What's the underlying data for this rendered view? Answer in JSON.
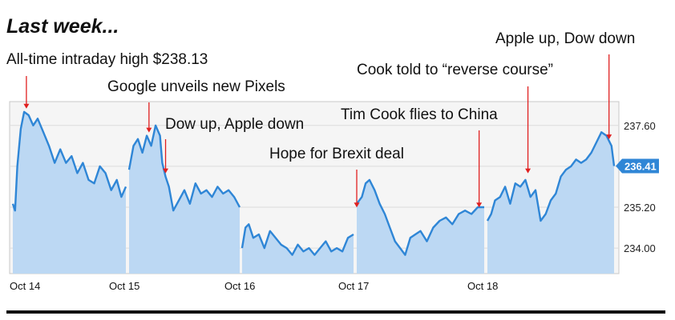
{
  "title": "Last week...",
  "chart_data": {
    "type": "area",
    "ylim": [
      233.25,
      238.3
    ],
    "yticks": [
      237.6,
      236.4,
      235.2,
      234.0
    ],
    "current_value": 236.41,
    "x_categories": [
      "Oct 14",
      "Oct 15",
      "Oct 16",
      "Oct 17",
      "Oct 18"
    ],
    "grid": true,
    "colors": {
      "line": "#2f86d6",
      "fill": "#bcd8f3",
      "plot_bg": "#f5f5f5",
      "annotation_arrow": "#e02020",
      "badge": "#2f86d6"
    },
    "series": [
      {
        "day": "Oct 14",
        "x": [
          0,
          0.02,
          0.04,
          0.07,
          0.1,
          0.14,
          0.18,
          0.22,
          0.27,
          0.32,
          0.37,
          0.42,
          0.47,
          0.52,
          0.57,
          0.62,
          0.67,
          0.72,
          0.77,
          0.82,
          0.87,
          0.92,
          0.96,
          1
        ],
        "y": [
          235.3,
          235.1,
          236.4,
          237.5,
          238.0,
          237.9,
          237.6,
          237.8,
          237.4,
          237.0,
          236.5,
          236.9,
          236.5,
          236.7,
          236.2,
          236.5,
          236.0,
          235.9,
          236.4,
          236.2,
          235.7,
          236.0,
          235.5,
          235.8
        ]
      },
      {
        "day": "Oct 15",
        "x": [
          0,
          0.04,
          0.08,
          0.12,
          0.16,
          0.2,
          0.24,
          0.28,
          0.3,
          0.33,
          0.36,
          0.4,
          0.45,
          0.5,
          0.55,
          0.6,
          0.65,
          0.7,
          0.75,
          0.8,
          0.85,
          0.9,
          0.95,
          1
        ],
        "y": [
          236.3,
          237.0,
          237.2,
          236.8,
          237.3,
          237.0,
          237.6,
          237.3,
          236.5,
          236.1,
          235.8,
          235.1,
          235.4,
          235.7,
          235.3,
          235.9,
          235.6,
          235.7,
          235.5,
          235.8,
          235.6,
          235.7,
          235.5,
          235.2
        ]
      },
      {
        "day": "Oct 16",
        "x": [
          0,
          0.03,
          0.06,
          0.1,
          0.15,
          0.2,
          0.25,
          0.3,
          0.35,
          0.4,
          0.45,
          0.5,
          0.55,
          0.6,
          0.65,
          0.7,
          0.75,
          0.8,
          0.85,
          0.9,
          0.95,
          1
        ],
        "y": [
          234.0,
          234.6,
          234.7,
          234.3,
          234.4,
          234.0,
          234.5,
          234.3,
          234.1,
          234.0,
          233.8,
          234.1,
          233.9,
          234.0,
          233.8,
          234.0,
          234.2,
          233.9,
          234.0,
          233.9,
          234.3,
          234.4
        ]
      },
      {
        "day": "Oct 17",
        "x": [
          0,
          0.04,
          0.07,
          0.1,
          0.14,
          0.18,
          0.22,
          0.26,
          0.3,
          0.34,
          0.38,
          0.42,
          0.46,
          0.5,
          0.55,
          0.6,
          0.65,
          0.7,
          0.75,
          0.8,
          0.85,
          0.9,
          0.95,
          1
        ],
        "y": [
          235.3,
          235.5,
          235.9,
          236.0,
          235.7,
          235.3,
          235.0,
          234.6,
          234.2,
          234.0,
          233.8,
          234.3,
          234.4,
          234.5,
          234.2,
          234.6,
          234.8,
          234.9,
          234.7,
          235.0,
          235.1,
          235.0,
          235.2,
          235.2
        ]
      },
      {
        "day": "Oct 18",
        "x": [
          0,
          0.03,
          0.06,
          0.1,
          0.14,
          0.18,
          0.22,
          0.26,
          0.3,
          0.34,
          0.38,
          0.42,
          0.46,
          0.5,
          0.54,
          0.58,
          0.62,
          0.66,
          0.7,
          0.74,
          0.78,
          0.82,
          0.86,
          0.9,
          0.94,
          0.98,
          1
        ],
        "y": [
          234.8,
          235.0,
          235.4,
          235.5,
          235.8,
          235.3,
          235.9,
          235.8,
          236.0,
          235.5,
          235.7,
          234.8,
          235.0,
          235.4,
          235.6,
          236.1,
          236.3,
          236.4,
          236.6,
          236.5,
          236.6,
          236.8,
          237.1,
          237.4,
          237.3,
          237.0,
          236.41
        ]
      }
    ],
    "annotations": [
      {
        "text": "All-time intraday high $238.13",
        "day": "Oct 14",
        "pos": 0.12,
        "value": 238.0
      },
      {
        "text": "Google unveils new Pixels",
        "day": "Oct 15",
        "pos": 0.18,
        "value": 237.3
      },
      {
        "text": "Dow up, Apple down",
        "day": "Oct 15",
        "pos": 0.33,
        "value": 236.1
      },
      {
        "text": "Hope for Brexit deal",
        "day": "Oct 17",
        "pos": 0.0,
        "value": 235.1
      },
      {
        "text": "Tim Cook flies to China",
        "day": "Oct 17",
        "pos": 0.96,
        "value": 235.1
      },
      {
        "text": "Cook told to “reverse course”",
        "day": "Oct 18",
        "pos": 0.32,
        "value": 236.1
      },
      {
        "text": "Apple up, Dow down",
        "day": "Oct 18",
        "pos": 0.96,
        "value": 237.1
      }
    ]
  }
}
